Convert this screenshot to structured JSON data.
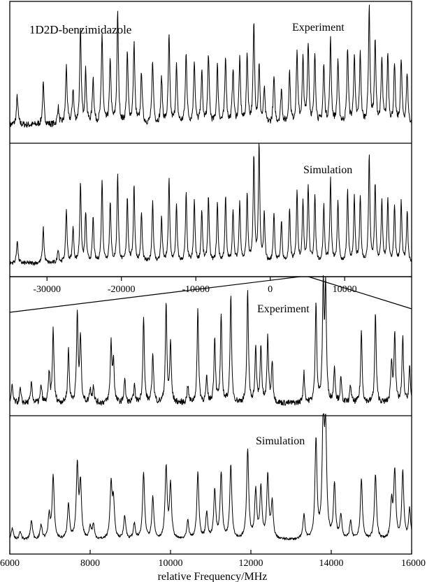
{
  "chart_data": [
    {
      "type": "line",
      "title": "1D2D-benzimidazole",
      "panels": [
        {
          "name": "Experiment"
        },
        {
          "name": "Simulation"
        }
      ],
      "xlabel": "",
      "xlim": [
        -35000,
        19000
      ],
      "x_ticks": [
        -30000,
        -20000,
        -10000,
        0,
        10000
      ],
      "x_tick_labels": [
        "-30000",
        "-20000",
        "-10000",
        "0",
        "10000"
      ],
      "zoom_region": [
        4000,
        16000
      ],
      "peaks_x": [
        -34000,
        -30500,
        -28500,
        -27400,
        -26500,
        -25500,
        -24800,
        -23800,
        -22600,
        -21500,
        -20500,
        -19200,
        -18300,
        -17300,
        -15800,
        -14600,
        -13600,
        -12600,
        -11300,
        -10200,
        -9200,
        -8300,
        -7100,
        -6000,
        -5000,
        -4100,
        -3100,
        -2200,
        -1500,
        -800,
        500,
        1500,
        2600,
        3600,
        4400,
        5100,
        6000,
        7200,
        8100,
        9100,
        10400,
        11300,
        12100,
        13300,
        14100,
        15000,
        15800,
        16700,
        17600,
        18400
      ],
      "peaks_experiment": [
        0.25,
        0.35,
        0.15,
        0.5,
        0.3,
        0.8,
        0.45,
        0.4,
        0.78,
        0.55,
        0.95,
        0.6,
        0.7,
        0.45,
        0.55,
        0.4,
        0.75,
        0.5,
        0.62,
        0.55,
        0.45,
        0.6,
        0.5,
        0.58,
        0.48,
        0.55,
        0.6,
        0.85,
        0.5,
        0.3,
        0.4,
        0.3,
        0.45,
        0.62,
        0.55,
        0.7,
        0.6,
        0.5,
        0.72,
        0.55,
        0.65,
        0.58,
        0.6,
        1.0,
        0.7,
        0.55,
        0.6,
        0.5,
        0.55,
        0.45
      ],
      "peaks_simulation": [
        0.2,
        0.3,
        0.12,
        0.45,
        0.3,
        0.68,
        0.42,
        0.38,
        0.7,
        0.52,
        0.75,
        0.55,
        0.65,
        0.42,
        0.52,
        0.38,
        0.7,
        0.48,
        0.58,
        0.52,
        0.44,
        0.56,
        0.5,
        0.55,
        0.45,
        0.52,
        0.58,
        0.9,
        1.0,
        0.4,
        0.42,
        0.35,
        0.44,
        0.6,
        0.52,
        0.65,
        0.56,
        0.48,
        0.7,
        0.52,
        0.6,
        0.55,
        0.56,
        0.9,
        0.66,
        0.52,
        0.55,
        0.48,
        0.52,
        0.44
      ]
    },
    {
      "type": "line",
      "panels": [
        {
          "name": "Experiment"
        },
        {
          "name": "Simulation"
        }
      ],
      "xlabel": "relative Frequency/MHz",
      "xlim": [
        6000,
        16000
      ],
      "x_ticks": [
        6000,
        8000,
        10000,
        12000,
        14000,
        16000
      ],
      "x_tick_labels": [
        "6000",
        "8000",
        "10000",
        "12000",
        "14000",
        "16000"
      ],
      "peaks_x": [
        6060,
        6260,
        6540,
        6780,
        6980,
        7080,
        7460,
        7680,
        7760,
        8000,
        8080,
        8520,
        8580,
        8860,
        9100,
        9330,
        9560,
        9890,
        10000,
        10430,
        10680,
        10900,
        11100,
        11260,
        11500,
        11920,
        12120,
        12250,
        12420,
        12530,
        13320,
        13620,
        13800,
        13860,
        14080,
        14240,
        14480,
        14750,
        15100,
        15500,
        15580,
        15780,
        15950
      ],
      "peaks_experiment": [
        0.15,
        0.12,
        0.18,
        0.15,
        0.25,
        0.62,
        0.45,
        0.75,
        0.55,
        0.12,
        0.15,
        0.5,
        0.35,
        0.2,
        0.15,
        0.72,
        0.42,
        0.82,
        0.5,
        0.15,
        0.78,
        0.2,
        0.55,
        0.72,
        0.9,
        0.95,
        0.45,
        0.48,
        0.55,
        0.35,
        0.25,
        0.85,
        1.0,
        0.95,
        0.3,
        0.2,
        0.15,
        0.6,
        0.75,
        0.35,
        0.6,
        0.55,
        0.3
      ],
      "peaks_simulation": [
        0.1,
        0.07,
        0.16,
        0.12,
        0.2,
        0.52,
        0.3,
        0.6,
        0.45,
        0.1,
        0.12,
        0.45,
        0.3,
        0.2,
        0.13,
        0.55,
        0.35,
        0.6,
        0.45,
        0.15,
        0.55,
        0.22,
        0.4,
        0.55,
        0.62,
        0.75,
        0.4,
        0.42,
        0.52,
        0.3,
        0.2,
        0.82,
        1.0,
        0.85,
        0.45,
        0.2,
        0.15,
        0.5,
        0.55,
        0.3,
        0.56,
        0.56,
        0.25
      ]
    }
  ]
}
